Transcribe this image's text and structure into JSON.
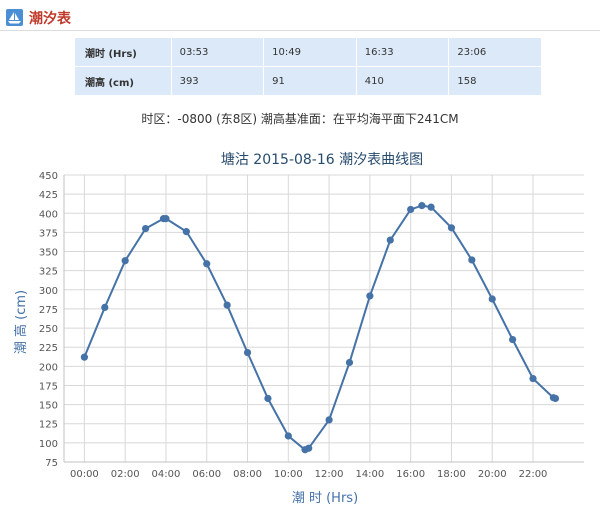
{
  "header": {
    "title": "潮汐表",
    "icon": "boat-icon"
  },
  "table": {
    "rows": [
      {
        "label": "潮时 (Hrs)",
        "values": [
          "03:53",
          "10:49",
          "16:33",
          "23:06"
        ]
      },
      {
        "label": "潮高 (cm)",
        "values": [
          "393",
          "91",
          "410",
          "158"
        ]
      }
    ]
  },
  "note": "时区：-0800 (东8区) 潮高基准面：在平均海平面下241CM",
  "chart_data": {
    "type": "line",
    "title": "塘沽 2015-08-16 潮汐表曲线图",
    "xlabel": "潮 时 (Hrs)",
    "ylabel": "潮 高 (cm)",
    "ylim": [
      75,
      450
    ],
    "yticks": [
      450,
      425,
      400,
      375,
      350,
      325,
      300,
      275,
      250,
      225,
      200,
      175,
      150,
      125,
      100,
      75
    ],
    "xticks": [
      {
        "label": "00:00",
        "x": 0
      },
      {
        "label": "02:00",
        "x": 2
      },
      {
        "label": "04:00",
        "x": 4
      },
      {
        "label": "06:00",
        "x": 6
      },
      {
        "label": "08:00",
        "x": 8
      },
      {
        "label": "10:00",
        "x": 10
      },
      {
        "label": "12:00",
        "x": 12
      },
      {
        "label": "14:00",
        "x": 14
      },
      {
        "label": "16:00",
        "x": 16
      },
      {
        "label": "18:00",
        "x": 18
      },
      {
        "label": "20:00",
        "x": 20
      },
      {
        "label": "22:00",
        "x": 22
      }
    ],
    "grid": true,
    "color": "#4572a7",
    "series": [
      {
        "points": [
          [
            0,
            212
          ],
          [
            1,
            277
          ],
          [
            2,
            338
          ],
          [
            3,
            380
          ],
          [
            3.88,
            393
          ],
          [
            4,
            393
          ],
          [
            5,
            376
          ],
          [
            6,
            334
          ],
          [
            7,
            280
          ],
          [
            8,
            218
          ],
          [
            9,
            158
          ],
          [
            10,
            109
          ],
          [
            10.82,
            91
          ],
          [
            11,
            93
          ],
          [
            12,
            130
          ],
          [
            13,
            205
          ],
          [
            14,
            292
          ],
          [
            15,
            365
          ],
          [
            16,
            405
          ],
          [
            16.55,
            410
          ],
          [
            17,
            408
          ],
          [
            18,
            381
          ],
          [
            19,
            339
          ],
          [
            20,
            288
          ],
          [
            21,
            235
          ],
          [
            22,
            184
          ],
          [
            23,
            159
          ],
          [
            23.1,
            158
          ]
        ]
      }
    ]
  }
}
